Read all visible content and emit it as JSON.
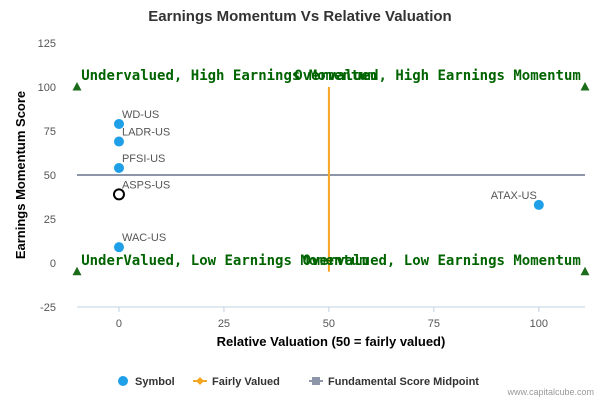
{
  "chart_data": {
    "type": "scatter",
    "title": "Earnings Momentum Vs Relative Valuation",
    "xlabel": "Relative Valuation (50 = fairly valued)",
    "ylabel": "Earnings Momentum Score",
    "xlim": [
      -10,
      111
    ],
    "ylim": [
      -25,
      125
    ],
    "xticks": [
      0,
      25,
      50,
      75,
      100
    ],
    "yticks": [
      -25,
      0,
      25,
      50,
      75,
      100,
      125
    ],
    "points": [
      {
        "label": "WD-US",
        "x": 0,
        "y": 79,
        "style": "filled"
      },
      {
        "label": "LADR-US",
        "x": 0,
        "y": 69,
        "style": "filled"
      },
      {
        "label": "PFSI-US",
        "x": 0,
        "y": 54,
        "style": "filled"
      },
      {
        "label": "ASPS-US",
        "x": 0,
        "y": 39,
        "style": "open"
      },
      {
        "label": "WAC-US",
        "x": 0,
        "y": 9,
        "style": "filled"
      },
      {
        "label": "ATAX-US",
        "x": 100,
        "y": 33,
        "style": "filled"
      }
    ],
    "fairly_valued_x": 50,
    "fairly_valued_y_range": [
      -5,
      100
    ],
    "midpoint_y": 50,
    "quadrant_labels": [
      {
        "text": "Undervalued, High Earnings Momentum",
        "x": -9,
        "y": 104,
        "align": "start"
      },
      {
        "text": "Overvalued, High Earnings Momentum",
        "x": 110,
        "y": 104,
        "align": "end"
      },
      {
        "text": "UnderValued, Low Earnings Momentum",
        "x": -9,
        "y": -1,
        "align": "start"
      },
      {
        "text": "Overvalued, Low Earnings Momentum",
        "x": 110,
        "y": -1,
        "align": "end"
      }
    ],
    "corner_markers": [
      {
        "x": -10,
        "y": 100
      },
      {
        "x": 111,
        "y": 100
      },
      {
        "x": -10,
        "y": -5
      },
      {
        "x": 111,
        "y": -5
      }
    ],
    "legend": {
      "position": "bottom",
      "items": [
        {
          "label": "Symbol",
          "marker": "circle"
        },
        {
          "label": "Fairly Valued",
          "marker": "diamond-line"
        },
        {
          "label": "Fundamental Score Midpoint",
          "marker": "square-line"
        }
      ]
    },
    "credit": "www.capitalcube.com",
    "colors": {
      "symbol": "#1E9FE8",
      "fairly_valued": "#F5A623",
      "midpoint": "#8C96A8",
      "quadrant_text": "#006400",
      "corner_marker": "#1A6B1A",
      "open_marker": "#000000"
    },
    "grid": false
  }
}
